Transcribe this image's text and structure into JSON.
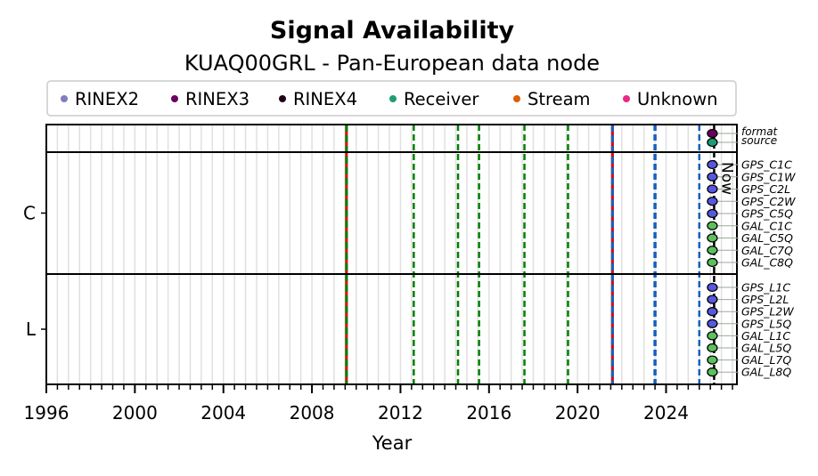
{
  "chart_data": {
    "type": "timeline",
    "title": "Signal Availability",
    "subtitle": "KUAQ00GRL - Pan-European data node",
    "xlabel": "Year",
    "xlim": [
      1996,
      2027.2
    ],
    "xticks": [
      1996,
      2000,
      2004,
      2008,
      2012,
      2016,
      2020,
      2024
    ],
    "legend": {
      "placement": "top",
      "entries": [
        {
          "label": "RINEX2",
          "color": "#7f7fbf"
        },
        {
          "label": "RINEX3",
          "color": "#6a0060"
        },
        {
          "label": "RINEX4",
          "color": "#200018"
        },
        {
          "label": "Receiver",
          "color": "#1b9e77"
        },
        {
          "label": "Stream",
          "color": "#d95f02"
        },
        {
          "label": "Unknown",
          "color": "#e7298a"
        }
      ]
    },
    "now_label": "Now",
    "now_year": 2026.17,
    "events": [
      {
        "year": 2009.56,
        "style": "red-green"
      },
      {
        "year": 2012.6,
        "style": "green"
      },
      {
        "year": 2014.6,
        "style": "green"
      },
      {
        "year": 2015.55,
        "style": "green"
      },
      {
        "year": 2017.6,
        "style": "green"
      },
      {
        "year": 2019.57,
        "style": "green"
      },
      {
        "year": 2021.58,
        "style": "red-blue"
      },
      {
        "year": 2023.5,
        "style": "blue"
      },
      {
        "year": 2025.5,
        "style": "blue-thin"
      }
    ],
    "panels": [
      {
        "label": "",
        "rows": [
          {
            "name": "format",
            "color": "#6a0060"
          },
          {
            "name": "source",
            "color": "#1b9e77"
          }
        ]
      },
      {
        "label": "C",
        "rows": [
          {
            "name": "GPS_C1C",
            "color": "#5757e0"
          },
          {
            "name": "GPS_C1W",
            "color": "#5757e0"
          },
          {
            "name": "GPS_C2L",
            "color": "#5757e0"
          },
          {
            "name": "GPS_C2W",
            "color": "#5757e0"
          },
          {
            "name": "GPS_C5Q",
            "color": "#5757e0"
          },
          {
            "name": "GAL_C1C",
            "color": "#5cc15c"
          },
          {
            "name": "GAL_C5Q",
            "color": "#5cc15c"
          },
          {
            "name": "GAL_C7Q",
            "color": "#5cc15c"
          },
          {
            "name": "GAL_C8Q",
            "color": "#5cc15c"
          }
        ]
      },
      {
        "label": "L",
        "rows": [
          {
            "name": "GPS_L1C",
            "color": "#5757e0"
          },
          {
            "name": "GPS_L2L",
            "color": "#5757e0"
          },
          {
            "name": "GPS_L2W",
            "color": "#5757e0"
          },
          {
            "name": "GPS_L5Q",
            "color": "#5757e0"
          },
          {
            "name": "GAL_L1C",
            "color": "#5cc15c"
          },
          {
            "name": "GAL_L5Q",
            "color": "#5cc15c"
          },
          {
            "name": "GAL_L7Q",
            "color": "#5cc15c"
          },
          {
            "name": "GAL_L8Q",
            "color": "#5cc15c"
          }
        ]
      }
    ]
  }
}
